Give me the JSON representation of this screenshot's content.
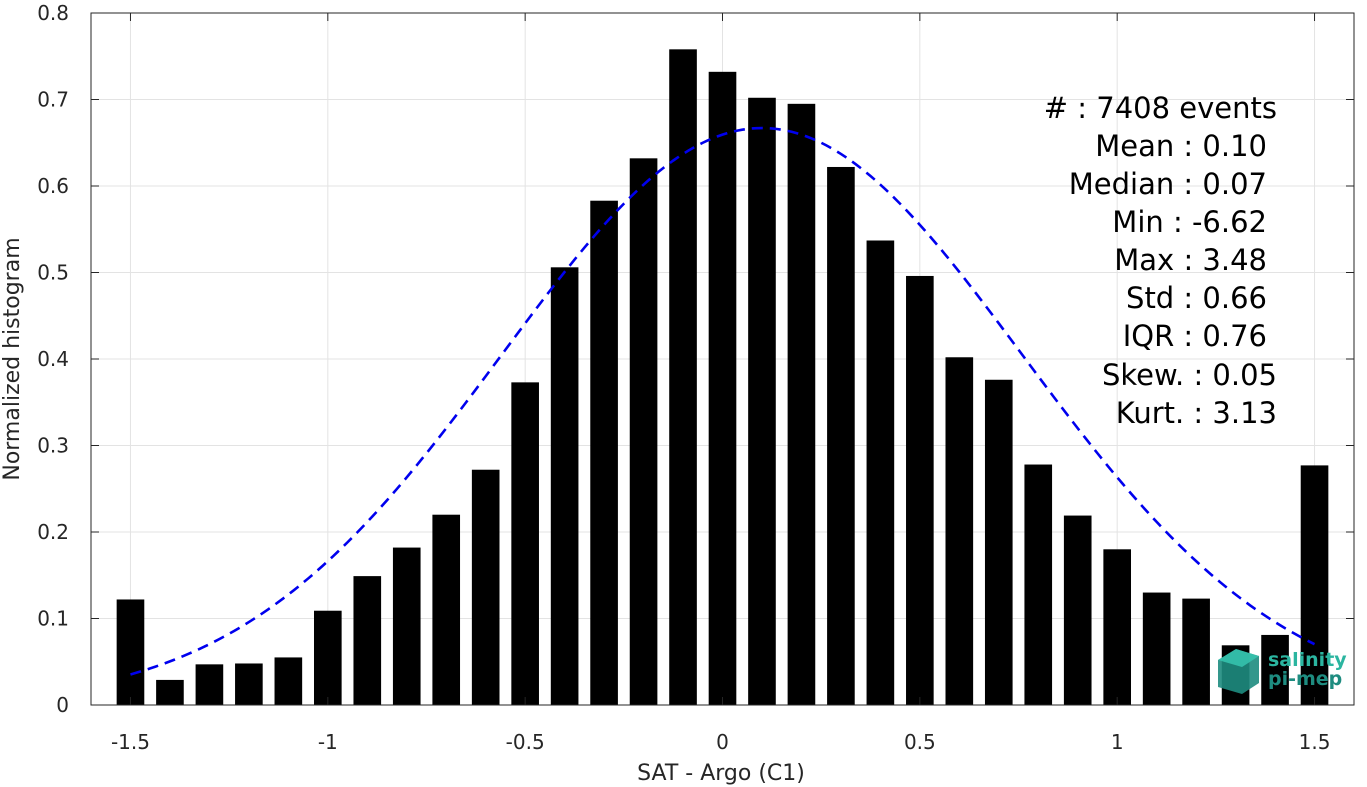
{
  "chart_data": {
    "type": "bar",
    "x": [
      -1.5,
      -1.4,
      -1.3,
      -1.2,
      -1.1,
      -1.0,
      -0.9,
      -0.8,
      -0.7,
      -0.6,
      -0.5,
      -0.4,
      -0.3,
      -0.2,
      -0.1,
      0.0,
      0.1,
      0.2,
      0.3,
      0.4,
      0.5,
      0.6,
      0.7,
      0.8,
      0.9,
      1.0,
      1.1,
      1.2,
      1.3,
      1.4,
      1.5
    ],
    "values": [
      0.122,
      0.029,
      0.047,
      0.048,
      0.055,
      0.109,
      0.149,
      0.182,
      0.22,
      0.272,
      0.373,
      0.506,
      0.583,
      0.632,
      0.758,
      0.732,
      0.702,
      0.695,
      0.622,
      0.537,
      0.496,
      0.402,
      0.376,
      0.278,
      0.219,
      0.18,
      0.13,
      0.123,
      0.069,
      0.081,
      0.277
    ],
    "fit_curve": {
      "type": "normal",
      "mean": 0.1,
      "std": 0.66,
      "peak": 0.667,
      "range": [
        -1.5,
        1.5
      ],
      "color": "#0000ee",
      "style": "dashed"
    },
    "bar_color": "#000000",
    "xlabel": "SAT - Argo (C1)",
    "ylabel": "Normalized histogram",
    "xlim": [
      -1.6,
      1.6
    ],
    "ylim": [
      0,
      0.8
    ],
    "xticks": [
      "-1.5",
      "-1",
      "-0.5",
      "0",
      "0.5",
      "1",
      "1.5"
    ],
    "xtick_values": [
      -1.5,
      -1,
      -0.5,
      0,
      0.5,
      1,
      1.5
    ],
    "yticks": [
      "0",
      "0.1",
      "0.2",
      "0.3",
      "0.4",
      "0.5",
      "0.6",
      "0.7",
      "0.8"
    ],
    "ytick_values": [
      0,
      0.1,
      0.2,
      0.3,
      0.4,
      0.5,
      0.6,
      0.7,
      0.8
    ],
    "grid": true
  },
  "stats": [
    {
      "label": "#  : 7408 events"
    },
    {
      "label": "Mean : 0.10"
    },
    {
      "label": "Median : 0.07"
    },
    {
      "label": "Min : -6.62"
    },
    {
      "label": "Max : 3.48"
    },
    {
      "label": "Std : 0.66"
    },
    {
      "label": "IQR : 0.76"
    },
    {
      "label": "Skew. : 0.05"
    },
    {
      "label": "Kurt. : 3.13"
    }
  ],
  "logo": {
    "line1": "salinity",
    "line2": "pi-mep",
    "color": "#2bb5a0"
  }
}
